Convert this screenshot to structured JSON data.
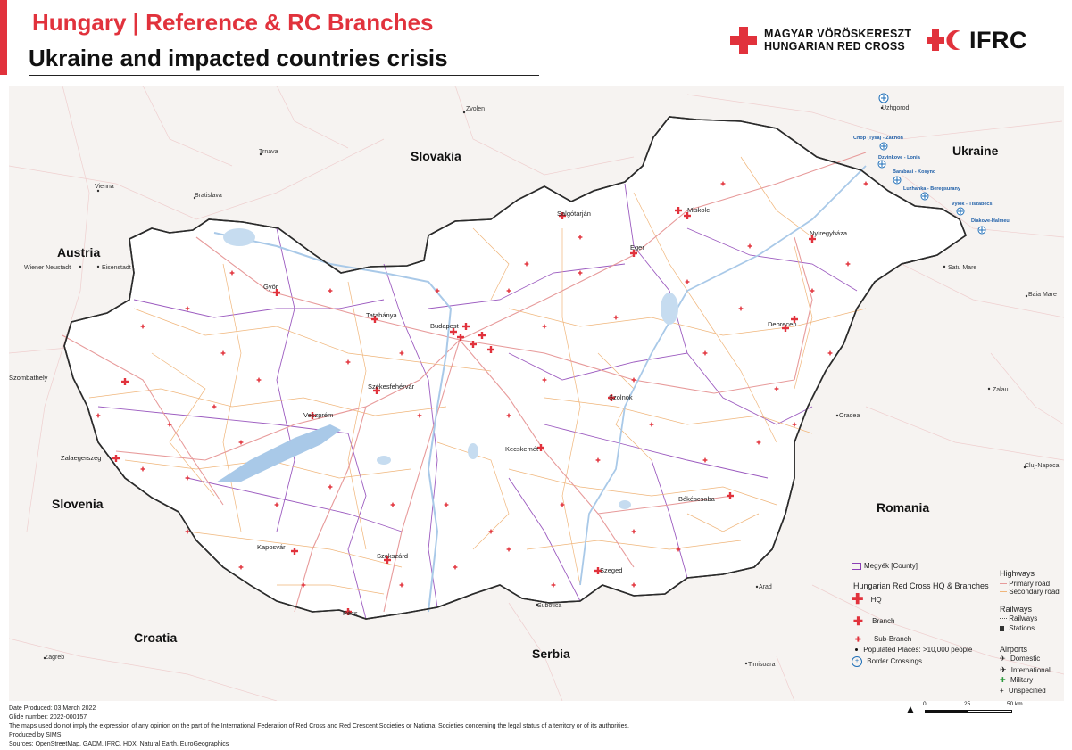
{
  "header": {
    "title_line1": "Hungary | Reference & RC Branches",
    "title_line2": "Ukraine and impacted countries crisis",
    "accent_color": "#e1323c"
  },
  "logos": {
    "hrc_line1": "MAGYAR VÖRÖSKERESZT",
    "hrc_line2": "HUNGARIAN RED CROSS",
    "ifrc": "IFRC"
  },
  "map": {
    "countries": [
      "Slovakia",
      "Ukraine",
      "Austria",
      "Slovenia",
      "Croatia",
      "Serbia",
      "Romania"
    ],
    "neighbor_cities": [
      "Zvolen",
      "Uzhgorod",
      "Trnava",
      "Vienna",
      "Bratislava",
      "Wiener Neustadt",
      "Eisenstadt",
      "Satu Mare",
      "Baia Mare",
      "Zalau",
      "Oradea",
      "Cluj-Napoca",
      "Arad",
      "Timisoara",
      "Subotica",
      "Zagreb"
    ],
    "hungary_cities": [
      "Győr",
      "Tatabánya",
      "Budapest",
      "Salgótarján",
      "Eger",
      "Miskolc",
      "Nyíregyháza",
      "Debrecen",
      "Szombathely",
      "Veszprém",
      "Székesfehérvár",
      "Szolnok",
      "Zalaegerszeg",
      "Kecskemét",
      "Békéscsaba",
      "Kaposvár",
      "Szekszárd",
      "Szeged",
      "Pécs"
    ],
    "border_crossings": [
      "Chop (Tysa) - Zakhon",
      "Dzvinkove - Lonia",
      "Barabasi - Kosyno",
      "Luzhanka - Beregsurany",
      "Vylok - Tiszabecs",
      "Diakove-Halmeu"
    ],
    "colors": {
      "hungary_fill": "#ffffff",
      "outside_fill": "#f6f3f1",
      "border": "#2b2b2b",
      "county": "#8b3fb5",
      "primary_road": "#e79a9a",
      "secondary_road": "#f0b57a",
      "water": "#a9c9e8",
      "rc_red": "#e1323c",
      "crossing_blue": "#1f6fb8"
    }
  },
  "legend": {
    "county": "Megyék [County]",
    "rc_title": "Hungarian Red Cross HQ & Branches",
    "hq": "HQ",
    "branch": "Branch",
    "subbranch": "Sub-Branch",
    "populated": "Populated Places: >10,000 people",
    "border": "Border Crossings",
    "highways_title": "Highways",
    "primary": "Primary road",
    "secondary": "Secondary road",
    "railways_title": "Railways",
    "railways": "Railways",
    "stations": "Stations",
    "airports_title": "Airports",
    "domestic": "Domestic",
    "international": "International",
    "military": "Military",
    "unspecified": "Unspecified"
  },
  "scale": {
    "l0": "0",
    "l1": "25",
    "l2": "50 km"
  },
  "footer": {
    "line1": "Date Produced: 03 March 2022",
    "line2": "Glide number: 2022-000157",
    "line3": "The maps used do not imply the expression of any opinion on the part of the International Federation of Red Cross and Red Crescent Societies or National Societies concerning the legal status of a territory or of its authorities.",
    "line4": "Produced by SIMS",
    "line5": "Sources: OpenStreetMap, GADM, IFRC, HDX, Natural Earth, EuroGeographics"
  }
}
